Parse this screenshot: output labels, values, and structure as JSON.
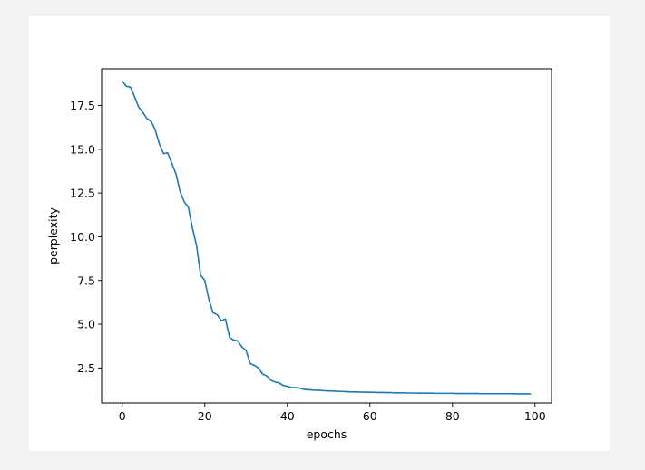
{
  "chart_data": {
    "type": "line",
    "title": "",
    "xlabel": "epochs",
    "ylabel": "perplexity",
    "xlim": [
      -5,
      104
    ],
    "ylim": [
      0.5,
      19.6
    ],
    "xticks": [
      0,
      20,
      40,
      60,
      80,
      100
    ],
    "xtick_labels": [
      "0",
      "20",
      "40",
      "60",
      "80",
      "100"
    ],
    "yticks": [
      2.5,
      5.0,
      7.5,
      10.0,
      12.5,
      15.0,
      17.5
    ],
    "ytick_labels": [
      "2.5",
      "5.0",
      "7.5",
      "10.0",
      "12.5",
      "15.0",
      "17.5"
    ],
    "grid": false,
    "legend": "none",
    "series": [
      {
        "color": "#1f77b4",
        "x": [
          0,
          1,
          2,
          3,
          4,
          5,
          6,
          7,
          8,
          9,
          10,
          11,
          12,
          13,
          14,
          15,
          16,
          17,
          18,
          19,
          20,
          21,
          22,
          23,
          24,
          25,
          26,
          27,
          28,
          29,
          30,
          31,
          32,
          33,
          34,
          35,
          36,
          37,
          38,
          39,
          40,
          41,
          42,
          43,
          44,
          45,
          46,
          47,
          48,
          49,
          50,
          51,
          52,
          53,
          54,
          55,
          56,
          57,
          58,
          59,
          60,
          61,
          62,
          63,
          64,
          65,
          66,
          67,
          68,
          69,
          70,
          71,
          72,
          73,
          74,
          75,
          76,
          77,
          78,
          79,
          80,
          81,
          82,
          83,
          84,
          85,
          86,
          87,
          88,
          89,
          90,
          91,
          92,
          93,
          94,
          95,
          96,
          97,
          98,
          99
        ],
        "values": [
          18.9,
          18.6,
          18.55,
          18.0,
          17.4,
          17.1,
          16.75,
          16.6,
          16.1,
          15.3,
          14.75,
          14.8,
          14.2,
          13.6,
          12.6,
          12.0,
          11.7,
          10.5,
          9.5,
          7.8,
          7.5,
          6.4,
          5.65,
          5.55,
          5.2,
          5.3,
          4.25,
          4.1,
          4.05,
          3.7,
          3.5,
          2.75,
          2.65,
          2.5,
          2.15,
          2.05,
          1.8,
          1.7,
          1.65,
          1.5,
          1.45,
          1.38,
          1.38,
          1.35,
          1.28,
          1.26,
          1.24,
          1.23,
          1.22,
          1.2,
          1.19,
          1.18,
          1.17,
          1.16,
          1.15,
          1.14,
          1.13,
          1.13,
          1.12,
          1.12,
          1.11,
          1.11,
          1.1,
          1.1,
          1.09,
          1.09,
          1.08,
          1.08,
          1.08,
          1.07,
          1.07,
          1.07,
          1.06,
          1.06,
          1.06,
          1.06,
          1.05,
          1.05,
          1.05,
          1.05,
          1.05,
          1.04,
          1.04,
          1.04,
          1.04,
          1.04,
          1.04,
          1.03,
          1.03,
          1.03,
          1.03,
          1.03,
          1.03,
          1.03,
          1.03,
          1.02,
          1.02,
          1.02,
          1.02,
          1.02
        ]
      }
    ]
  }
}
